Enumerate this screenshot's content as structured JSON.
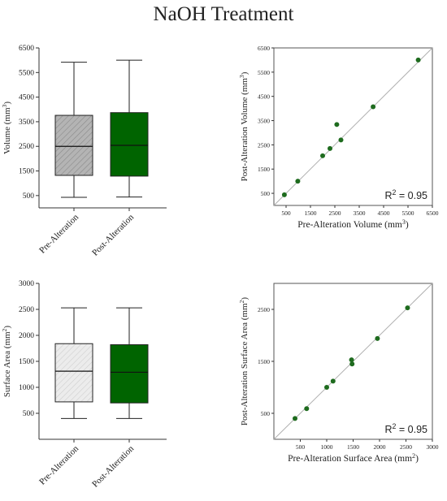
{
  "title": "NaOH Treatment",
  "colors": {
    "pre_box": "#b4b4b4",
    "pre_box_light": "#ececec",
    "post_box": "#006400",
    "point": "#1e6b1e",
    "identity_line": "#b0b0b0"
  },
  "chart_data": [
    {
      "type": "box",
      "ylabel": "Volume (mm³)",
      "ylim": [
        0,
        6500
      ],
      "yticks": [
        500,
        1500,
        2500,
        3500,
        4500,
        5500,
        6500
      ],
      "categories": [
        "Pre-Alteration",
        "Post-Alteration"
      ],
      "boxes": [
        {
          "name": "Pre-Alteration",
          "min": 430,
          "q1": 1320,
          "median": 2500,
          "q3": 3760,
          "max": 5920
        },
        {
          "name": "Post-Alteration",
          "min": 440,
          "q1": 1290,
          "median": 2540,
          "q3": 3870,
          "max": 6000
        }
      ]
    },
    {
      "type": "scatter",
      "xlabel": "Pre-Alteration Volume (mm³)",
      "ylabel": "Post-Alteration Volume (mm³)",
      "xlim": [
        0,
        6500
      ],
      "ylim": [
        0,
        6500
      ],
      "xticks": [
        500,
        1500,
        2500,
        3500,
        4500,
        5500,
        6500
      ],
      "yticks": [
        500,
        1500,
        2500,
        3500,
        4500,
        5500,
        6500
      ],
      "annotation": "R² = 0.95",
      "points": [
        {
          "x": 430,
          "y": 440
        },
        {
          "x": 980,
          "y": 1000
        },
        {
          "x": 2000,
          "y": 2050
        },
        {
          "x": 2300,
          "y": 2350
        },
        {
          "x": 2580,
          "y": 3340
        },
        {
          "x": 2750,
          "y": 2700
        },
        {
          "x": 4070,
          "y": 4070
        },
        {
          "x": 5920,
          "y": 6000
        }
      ]
    },
    {
      "type": "box",
      "ylabel": "Surface Area (mm²)",
      "ylim": [
        0,
        3000
      ],
      "yticks": [
        500,
        1000,
        1500,
        2000,
        2500,
        3000
      ],
      "categories": [
        "Pre-Alteration",
        "Post-Alteration"
      ],
      "boxes": [
        {
          "name": "Pre-Alteration",
          "min": 400,
          "q1": 720,
          "median": 1310,
          "q3": 1840,
          "max": 2530
        },
        {
          "name": "Post-Alteration",
          "min": 400,
          "q1": 700,
          "median": 1290,
          "q3": 1820,
          "max": 2530
        }
      ]
    },
    {
      "type": "scatter",
      "xlabel": "Pre-Alteration Surface Area (mm²)",
      "ylabel": "Post-Alteration Surface  Area (mm²)",
      "xlim": [
        0,
        3000
      ],
      "ylim": [
        0,
        3000
      ],
      "xticks": [
        500,
        1000,
        1500,
        2000,
        2500,
        3000
      ],
      "yticks": [
        500,
        1500,
        2500
      ],
      "annotation": "R² = 0.95",
      "points": [
        {
          "x": 400,
          "y": 400
        },
        {
          "x": 620,
          "y": 590
        },
        {
          "x": 1000,
          "y": 1000
        },
        {
          "x": 1120,
          "y": 1120
        },
        {
          "x": 1470,
          "y": 1530
        },
        {
          "x": 1480,
          "y": 1450
        },
        {
          "x": 1960,
          "y": 1940
        },
        {
          "x": 2530,
          "y": 2530
        }
      ]
    }
  ]
}
